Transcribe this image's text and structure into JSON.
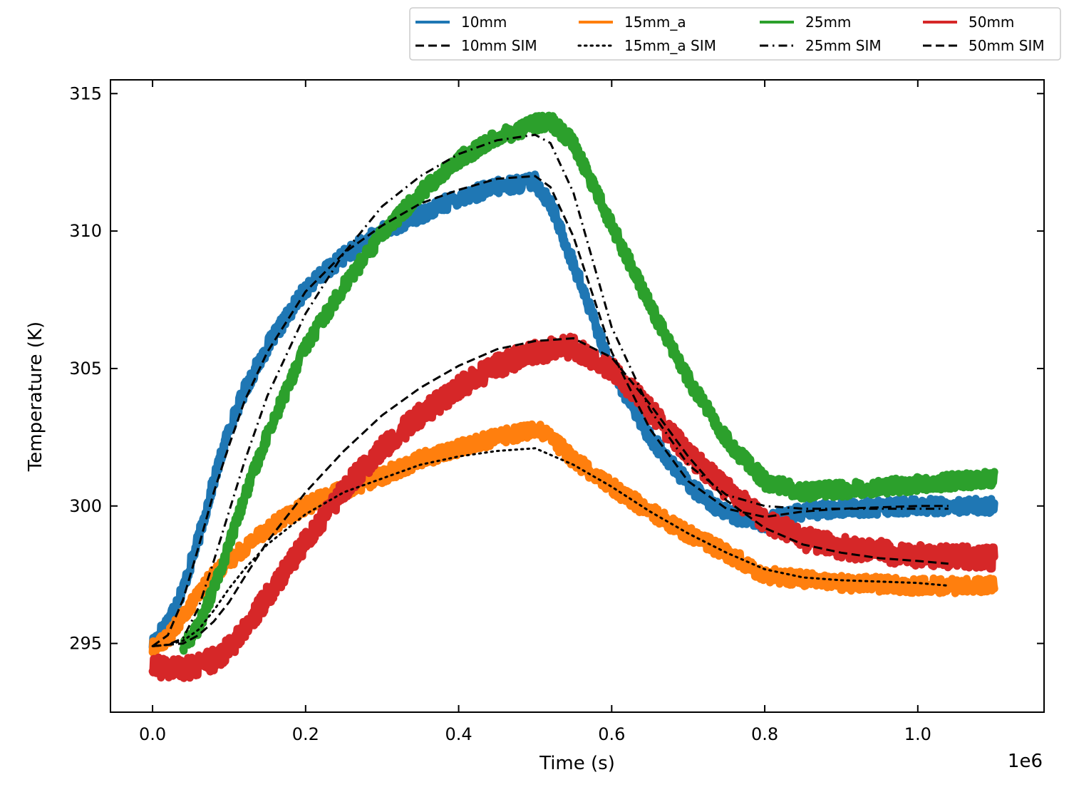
{
  "chart_data": {
    "type": "line",
    "title": "",
    "xlabel": "Time (s)",
    "ylabel": "Temperature (K)",
    "x_offset_label": "1e6",
    "xlim": [
      -0.055,
      1.165
    ],
    "ylim": [
      292.5,
      315.5
    ],
    "x_ticks": [
      0.0,
      0.2,
      0.4,
      0.6,
      0.8,
      1.0
    ],
    "x_tick_labels": [
      "0.0",
      "0.2",
      "0.4",
      "0.6",
      "0.8",
      "1.0"
    ],
    "y_ticks": [
      295,
      300,
      305,
      310,
      315
    ],
    "y_tick_labels": [
      "295",
      "300",
      "305",
      "310",
      "315"
    ],
    "grid": false,
    "legend_placement": "top-right (above plot)",
    "series": [
      {
        "name": "10mm",
        "kind": "measured",
        "color": "#1f77b4",
        "noise": 0.55,
        "x": [
          0.0,
          0.02,
          0.04,
          0.06,
          0.08,
          0.1,
          0.12,
          0.15,
          0.2,
          0.25,
          0.3,
          0.35,
          0.4,
          0.45,
          0.5,
          0.52,
          0.55,
          0.6,
          0.65,
          0.7,
          0.75,
          0.8,
          0.85,
          0.9,
          1.0,
          1.1
        ],
        "y": [
          295.0,
          295.8,
          297.0,
          298.8,
          300.9,
          302.8,
          304.2,
          305.8,
          307.9,
          309.1,
          310.0,
          310.6,
          311.2,
          311.6,
          311.8,
          311.0,
          308.8,
          305.0,
          302.5,
          300.8,
          299.7,
          299.4,
          299.8,
          299.9,
          300.0,
          300.0
        ]
      },
      {
        "name": "10mm SIM",
        "kind": "simulation",
        "color": "#000000",
        "dash": "dashed",
        "x": [
          0.0,
          0.02,
          0.04,
          0.06,
          0.08,
          0.1,
          0.12,
          0.15,
          0.2,
          0.25,
          0.3,
          0.35,
          0.4,
          0.45,
          0.5,
          0.52,
          0.55,
          0.6,
          0.65,
          0.7,
          0.75,
          0.8,
          0.85,
          0.9,
          1.0,
          1.04
        ],
        "y": [
          294.9,
          295.3,
          296.6,
          298.5,
          300.5,
          302.2,
          303.8,
          305.6,
          307.8,
          309.2,
          310.2,
          311.0,
          311.5,
          311.9,
          312.0,
          311.6,
          309.8,
          305.6,
          302.8,
          300.9,
          299.9,
          299.6,
          299.8,
          299.9,
          300.0,
          300.0
        ]
      },
      {
        "name": "15mm_a",
        "kind": "measured",
        "color": "#ff7f0e",
        "noise": 0.55,
        "x": [
          0.0,
          0.02,
          0.04,
          0.06,
          0.08,
          0.1,
          0.15,
          0.2,
          0.25,
          0.3,
          0.35,
          0.4,
          0.45,
          0.5,
          0.52,
          0.55,
          0.6,
          0.65,
          0.7,
          0.75,
          0.8,
          0.9,
          1.0,
          1.1
        ],
        "y": [
          294.8,
          295.2,
          296.0,
          296.8,
          297.5,
          298.0,
          299.2,
          300.0,
          300.6,
          301.1,
          301.7,
          302.1,
          302.5,
          302.8,
          302.5,
          301.7,
          300.7,
          299.8,
          299.0,
          298.3,
          297.5,
          297.2,
          297.1,
          297.1
        ]
      },
      {
        "name": "15mm_a SIM",
        "kind": "simulation",
        "color": "#000000",
        "dash": "dotted",
        "x": [
          0.0,
          0.02,
          0.04,
          0.06,
          0.08,
          0.1,
          0.12,
          0.15,
          0.2,
          0.25,
          0.3,
          0.35,
          0.4,
          0.45,
          0.5,
          0.55,
          0.6,
          0.65,
          0.7,
          0.75,
          0.8,
          0.85,
          0.9,
          1.0,
          1.04
        ],
        "y": [
          294.9,
          294.95,
          295.1,
          295.5,
          296.2,
          297.0,
          297.7,
          298.6,
          299.7,
          300.5,
          301.0,
          301.5,
          301.8,
          302.0,
          302.1,
          301.5,
          300.7,
          299.8,
          299.0,
          298.3,
          297.7,
          297.4,
          297.3,
          297.2,
          297.1
        ]
      },
      {
        "name": "25mm",
        "kind": "measured",
        "color": "#2ca02c",
        "noise": 0.55,
        "x": [
          0.04,
          0.06,
          0.08,
          0.1,
          0.12,
          0.15,
          0.2,
          0.25,
          0.3,
          0.35,
          0.4,
          0.45,
          0.5,
          0.52,
          0.55,
          0.6,
          0.65,
          0.7,
          0.75,
          0.8,
          0.85,
          0.9,
          1.0,
          1.1
        ],
        "y": [
          294.9,
          295.6,
          297.0,
          298.6,
          300.3,
          302.6,
          305.8,
          308.0,
          309.9,
          311.4,
          312.6,
          313.4,
          313.9,
          314.0,
          313.2,
          310.2,
          307.3,
          304.6,
          302.4,
          300.9,
          300.5,
          300.6,
          300.8,
          301.0
        ]
      },
      {
        "name": "25mm SIM",
        "kind": "simulation",
        "color": "#000000",
        "dash": "dashdot",
        "x": [
          0.0,
          0.02,
          0.04,
          0.06,
          0.08,
          0.1,
          0.12,
          0.15,
          0.2,
          0.25,
          0.3,
          0.35,
          0.4,
          0.45,
          0.5,
          0.52,
          0.55,
          0.6,
          0.65,
          0.7,
          0.75,
          0.8,
          0.85,
          0.9,
          1.0,
          1.04
        ],
        "y": [
          294.9,
          294.95,
          295.2,
          296.3,
          298.0,
          299.8,
          301.6,
          304.0,
          307.0,
          309.2,
          310.9,
          312.0,
          312.8,
          313.3,
          313.5,
          313.2,
          311.4,
          306.5,
          303.5,
          301.5,
          300.4,
          300.0,
          299.9,
          299.9,
          299.9,
          299.9
        ]
      },
      {
        "name": "50mm",
        "kind": "measured",
        "color": "#d62728",
        "noise": 0.8,
        "x": [
          0.0,
          0.02,
          0.04,
          0.06,
          0.08,
          0.1,
          0.12,
          0.15,
          0.2,
          0.25,
          0.3,
          0.35,
          0.4,
          0.45,
          0.5,
          0.55,
          0.6,
          0.65,
          0.7,
          0.75,
          0.8,
          0.85,
          0.9,
          1.0,
          1.1
        ],
        "y": [
          294.1,
          294.1,
          294.1,
          294.2,
          294.4,
          294.8,
          295.5,
          296.7,
          298.7,
          300.6,
          302.1,
          303.3,
          304.3,
          305.1,
          305.6,
          305.8,
          305.0,
          303.5,
          301.9,
          300.6,
          299.5,
          298.8,
          298.5,
          298.2,
          298.1
        ]
      },
      {
        "name": "50mm SIM",
        "kind": "simulation",
        "color": "#000000",
        "dash": "dashed",
        "x": [
          0.0,
          0.02,
          0.04,
          0.06,
          0.08,
          0.1,
          0.12,
          0.15,
          0.2,
          0.25,
          0.3,
          0.35,
          0.4,
          0.45,
          0.5,
          0.55,
          0.6,
          0.65,
          0.7,
          0.75,
          0.8,
          0.85,
          0.9,
          0.95,
          1.0,
          1.04
        ],
        "y": [
          294.9,
          294.95,
          295.0,
          295.3,
          295.8,
          296.5,
          297.4,
          298.7,
          300.5,
          302.0,
          303.3,
          304.3,
          305.1,
          305.7,
          306.0,
          306.1,
          305.4,
          303.7,
          301.8,
          300.2,
          299.2,
          298.6,
          298.3,
          298.1,
          298.0,
          297.9
        ]
      }
    ]
  }
}
